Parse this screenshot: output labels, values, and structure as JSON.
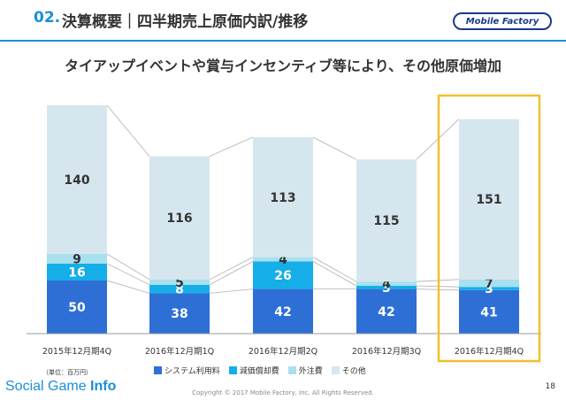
{
  "header": {
    "number": "02.",
    "title": "決算概要｜四半期売上原価内訳/推移",
    "logo": "Mobile Factory"
  },
  "subtitle": "タイアップイベントや賞与インセンティブ等により、その他原価増加",
  "unit": "（単位：百万円）",
  "footer": {
    "brand_plain": "Social Game ",
    "brand_bold": "Info",
    "copyright": "Copyright © 2017 Mobile Factory, Inc. All Rights Reserved.",
    "page": "18"
  },
  "colors": {
    "system": "#2e6fd6",
    "depreciation": "#15aee8",
    "outsourcing": "#a8e0ee",
    "other": "#d6e6ef",
    "highlight": "#f0c02e"
  },
  "chart_data": {
    "type": "bar",
    "stacked": true,
    "categories": [
      "2015年12月期4Q",
      "2016年12月期1Q",
      "2016年12月期2Q",
      "2016年12月期3Q",
      "2016年12月期4Q"
    ],
    "series": [
      {
        "name": "システム利用料",
        "values": [
          50,
          38,
          42,
          42,
          41
        ]
      },
      {
        "name": "減価償却費",
        "values": [
          16,
          8,
          26,
          3,
          3
        ]
      },
      {
        "name": "外注費",
        "values": [
          9,
          5,
          4,
          4,
          7
        ]
      },
      {
        "name": "その他",
        "values": [
          140,
          116,
          113,
          115,
          151
        ]
      }
    ],
    "highlighted_category": "2016年12月期4Q",
    "legend_position": "bottom"
  }
}
